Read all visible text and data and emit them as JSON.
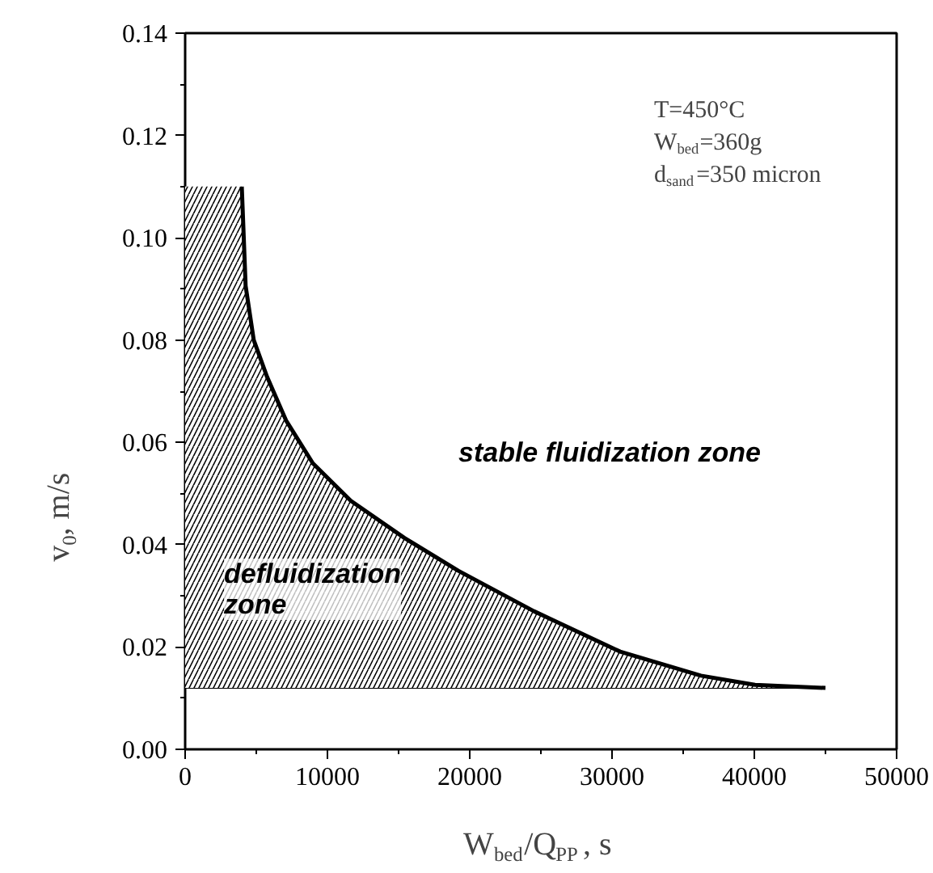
{
  "chart_data": {
    "type": "area",
    "xlabel": "W$_{bed}$/Q$_{PP}$, s",
    "ylabel": "v$_{0}$, m/s",
    "series": [
      {
        "type": "line",
        "color": "#000000",
        "x": [
          0,
          45000
        ],
        "values": [
          0.012,
          0.012
        ]
      },
      {
        "color": "#000000",
        "x": [
          0,
          3980,
          4250,
          4820,
          5760,
          7090,
          8980,
          11640,
          15420,
          19200,
          24510,
          30570,
          36250,
          40050,
          45000
        ],
        "values": [
          0.11,
          0.11,
          0.0906,
          0.08,
          0.0728,
          0.0643,
          0.0559,
          0.0486,
          0.0413,
          0.0349,
          0.027,
          0.0191,
          0.0144,
          0.0126,
          0.012
        ]
      }
    ],
    "annotations": [
      "stable fluidization zone",
      "defluidization zone",
      "T=450°C",
      "W$_{bed}$=360g",
      "d$_{sand}$=350 micron"
    ],
    "xlim": [
      0,
      50000
    ],
    "ylim": [
      0,
      0.14
    ],
    "xticks": [
      0,
      10000,
      20000,
      30000,
      40000,
      50000
    ],
    "yticks": [
      {
        "value": 0,
        "label": "0.00"
      },
      {
        "value": 0.02,
        "label": "0.02"
      },
      {
        "value": 0.04,
        "label": "0.04"
      },
      {
        "value": 0.06,
        "label": "0.06"
      },
      {
        "value": 0.08,
        "label": "0.08"
      },
      {
        "value": 0.1,
        "label": "0.10"
      },
      {
        "value": 0.12,
        "label": "0.12"
      },
      {
        "value": 0.14,
        "label": "0.14"
      }
    ],
    "grid": false,
    "marker": "none",
    "line_style": "solid"
  }
}
